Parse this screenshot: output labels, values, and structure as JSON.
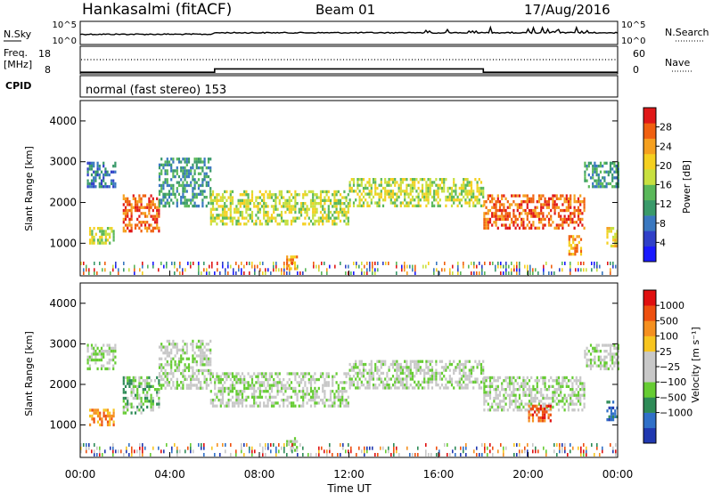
{
  "header": {
    "title": "Hankasalmi (fitACF)",
    "beam": "Beam 01",
    "date": "17/Aug/2016"
  },
  "summary_panel": {
    "left_labels": {
      "nsky": "N.Sky",
      "freq_line1": "Freq.",
      "freq_line2": "[MHz]",
      "cpid": "CPID"
    },
    "right_labels": {
      "nsearch": "N.Search",
      "nave": "Nave"
    },
    "noise_axis_left": [
      "10^5",
      "10^0"
    ],
    "noise_axis_right": [
      "10^5",
      "10^0"
    ],
    "freq_axis": [
      "18",
      "8"
    ],
    "nave_axis": [
      "60",
      "0"
    ],
    "cpid_text": "normal (fast stereo) 153",
    "freq_series": [
      {
        "t": 0,
        "mhz": 11.5
      },
      {
        "t": 6,
        "mhz": 11.5
      },
      {
        "t": 6,
        "mhz": 12.7
      },
      {
        "t": 18,
        "mhz": 12.7
      },
      {
        "t": 18,
        "mhz": 11.5
      },
      {
        "t": 24,
        "mhz": 11.5
      }
    ]
  },
  "chart_data": [
    {
      "type": "heatmap",
      "name": "power-panel",
      "ylabel": "Slant Range [km]",
      "ylim": [
        200,
        4500
      ],
      "yticks": [
        "1000",
        "2000",
        "3000",
        "4000"
      ],
      "xlim": [
        0,
        24
      ],
      "colorbar": {
        "label": "Power [dB]",
        "ticks": [
          "4",
          "8",
          "12",
          "16",
          "20",
          "24",
          "28"
        ],
        "colors": [
          "#1a1aff",
          "#3040c8",
          "#3a78c0",
          "#3a9a6a",
          "#5ab85a",
          "#c8e040",
          "#f5d020",
          "#f5a020",
          "#f06010",
          "#e01818"
        ]
      },
      "regions": [
        {
          "t0": 0.3,
          "t1": 1.6,
          "r0": 2400,
          "r1": 3000,
          "level": 2
        },
        {
          "t0": 0.4,
          "t1": 1.5,
          "r0": 1000,
          "r1": 1400,
          "level": 5
        },
        {
          "t0": 1.9,
          "t1": 3.5,
          "r0": 1300,
          "r1": 2200,
          "level": 8
        },
        {
          "t0": 3.5,
          "t1": 5.8,
          "r0": 1900,
          "r1": 3100,
          "level": 3
        },
        {
          "t0": 5.8,
          "t1": 12.0,
          "r0": 1500,
          "r1": 2300,
          "level": 5
        },
        {
          "t0": 12.0,
          "t1": 18.0,
          "r0": 1900,
          "r1": 2600,
          "level": 5
        },
        {
          "t0": 18.0,
          "t1": 22.5,
          "r0": 1400,
          "r1": 2200,
          "level": 8
        },
        {
          "t0": 22.5,
          "t1": 24.0,
          "r0": 2400,
          "r1": 3000,
          "level": 3
        },
        {
          "t0": 9.2,
          "t1": 9.7,
          "r0": 400,
          "r1": 700,
          "level": 7
        },
        {
          "t0": 21.8,
          "t1": 22.4,
          "r0": 700,
          "r1": 1200,
          "level": 7
        },
        {
          "t0": 23.5,
          "t1": 24.0,
          "r0": 900,
          "r1": 1400,
          "level": 6
        }
      ]
    },
    {
      "type": "heatmap",
      "name": "velocity-panel",
      "ylabel": "Slant Range [km]",
      "ylim": [
        200,
        4500
      ],
      "yticks": [
        "1000",
        "2000",
        "3000",
        "4000"
      ],
      "xlim": [
        0,
        24
      ],
      "xticks": [
        "00:00",
        "04:00",
        "08:00",
        "12:00",
        "16:00",
        "20:00",
        "00:00"
      ],
      "xlabel": "Time UT",
      "colorbar": {
        "label": "Velocity [m s⁻¹]",
        "ticks": [
          "1000",
          "500",
          "100",
          "25",
          "−25",
          "−100",
          "−500",
          "−1000"
        ],
        "colors": [
          "#2038b0",
          "#3070c8",
          "#2e8b57",
          "#66cc33",
          "#c8c8c8",
          "#c8c8c8",
          "#f7c520",
          "#f59020",
          "#ee5010",
          "#e01010"
        ]
      },
      "regions": [
        {
          "t0": 0.3,
          "t1": 1.6,
          "r0": 2400,
          "r1": 3000,
          "level": 4
        },
        {
          "t0": 0.4,
          "t1": 1.5,
          "r0": 1000,
          "r1": 1400,
          "level": 7
        },
        {
          "t0": 1.9,
          "t1": 3.5,
          "r0": 1300,
          "r1": 2200,
          "level": 3
        },
        {
          "t0": 3.5,
          "t1": 5.8,
          "r0": 1900,
          "r1": 3100,
          "level": 4
        },
        {
          "t0": 5.8,
          "t1": 12.0,
          "r0": 1500,
          "r1": 2300,
          "level": 4
        },
        {
          "t0": 12.0,
          "t1": 18.0,
          "r0": 1900,
          "r1": 2600,
          "level": 4
        },
        {
          "t0": 18.0,
          "t1": 22.5,
          "r0": 1400,
          "r1": 2200,
          "level": 4
        },
        {
          "t0": 22.5,
          "t1": 24.0,
          "r0": 2400,
          "r1": 3000,
          "level": 4
        },
        {
          "t0": 9.2,
          "t1": 9.7,
          "r0": 400,
          "r1": 700,
          "level": 4
        },
        {
          "t0": 20.0,
          "t1": 21.0,
          "r0": 1100,
          "r1": 1500,
          "level": 8
        },
        {
          "t0": 23.5,
          "t1": 24.0,
          "r0": 1100,
          "r1": 1600,
          "level": 1
        }
      ]
    }
  ]
}
